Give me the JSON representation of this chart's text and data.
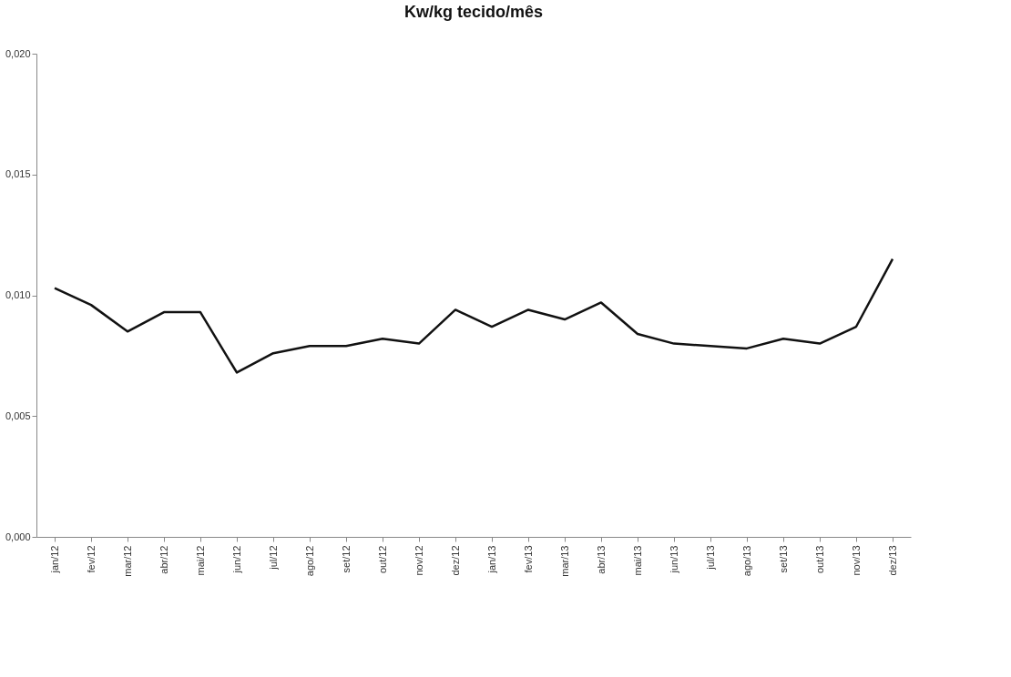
{
  "chart_data": {
    "type": "line",
    "title": "Kw/kg tecido/mês",
    "categories": [
      "jan/12",
      "fev/12",
      "mar/12",
      "abr/12",
      "mai/12",
      "jun/12",
      "jul/12",
      "ago/12",
      "set/12",
      "out/12",
      "nov/12",
      "dez/12",
      "jan/13",
      "fev/13",
      "mar/13",
      "abr/13",
      "mai/13",
      "jun/13",
      "jul/13",
      "ago/13",
      "set/13",
      "out/13",
      "nov/13",
      "dez/13"
    ],
    "series": [
      {
        "color": "#111111",
        "values": [
          0.0103,
          0.0096,
          0.0085,
          0.0093,
          0.0093,
          0.0068,
          0.0076,
          0.0079,
          0.0079,
          0.0082,
          0.008,
          0.0094,
          0.0087,
          0.0094,
          0.009,
          0.0097,
          0.0084,
          0.008,
          0.0079,
          0.0078,
          0.0082,
          0.008,
          0.0087,
          0.0115
        ]
      }
    ],
    "ylim": [
      0,
      0.02
    ],
    "yticks": [
      {
        "value": 0,
        "label": "0,000"
      },
      {
        "value": 0.005,
        "label": "0,005"
      },
      {
        "value": 0.01,
        "label": "0,010"
      },
      {
        "value": 0.015,
        "label": "0,015"
      },
      {
        "value": 0.02,
        "label": "0,020"
      }
    ],
    "grid": false,
    "marker": "none",
    "line_style": "solid"
  }
}
